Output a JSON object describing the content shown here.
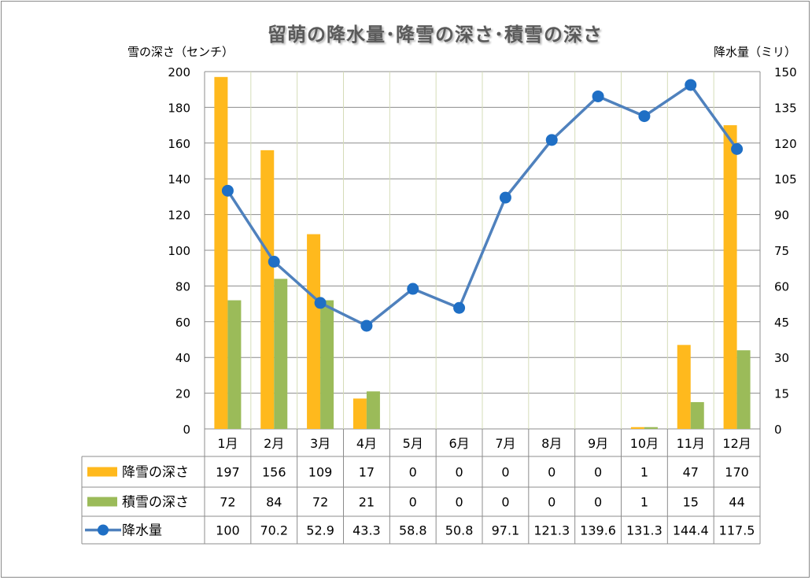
{
  "chart_data": {
    "type": "bar",
    "title": "留萌の降水量･降雪の深さ･積雪の深さ",
    "ylabel_left": "雪の深さ（センチ）",
    "ylabel_right": "降水量（ミリ）",
    "ylim_left": [
      0,
      200
    ],
    "ylim_right": [
      0,
      150
    ],
    "yticks_left": [
      "0",
      "20",
      "40",
      "60",
      "80",
      "100",
      "120",
      "140",
      "160",
      "180",
      "200"
    ],
    "yticks_right": [
      "0",
      "15",
      "30",
      "45",
      "60",
      "75",
      "90",
      "105",
      "120",
      "135",
      "150"
    ],
    "grid": true,
    "legend_placement": "data-table",
    "categories": [
      "1月",
      "2月",
      "3月",
      "4月",
      "5月",
      "6月",
      "7月",
      "8月",
      "9月",
      "10月",
      "11月",
      "12月"
    ],
    "series": [
      {
        "name": "降雪の深さ",
        "type": "bar",
        "axis": "left",
        "color": "#FFB91D",
        "values": [
          197,
          156,
          109,
          17,
          0,
          0,
          0,
          0,
          0,
          1,
          47,
          170
        ],
        "labels": [
          "197",
          "156",
          "109",
          "17",
          "0",
          "0",
          "0",
          "0",
          "0",
          "1",
          "47",
          "170"
        ]
      },
      {
        "name": "積雪の深さ",
        "type": "bar",
        "axis": "left",
        "color": "#9BBB59",
        "values": [
          72,
          84,
          72,
          21,
          0,
          0,
          0,
          0,
          0,
          1,
          15,
          44
        ],
        "labels": [
          "72",
          "84",
          "72",
          "21",
          "0",
          "0",
          "0",
          "0",
          "0",
          "1",
          "15",
          "44"
        ]
      },
      {
        "name": "降水量",
        "type": "line",
        "axis": "right",
        "color": "#4F81BD",
        "values": [
          100,
          70.2,
          52.9,
          43.3,
          58.8,
          50.8,
          97.1,
          121.3,
          139.6,
          131.3,
          144.4,
          117.5
        ],
        "labels": [
          "100",
          "70.2",
          "52.9",
          "43.3",
          "58.8",
          "50.8",
          "97.1",
          "121.3",
          "139.6",
          "131.3",
          "144.4",
          "117.5"
        ]
      }
    ]
  }
}
